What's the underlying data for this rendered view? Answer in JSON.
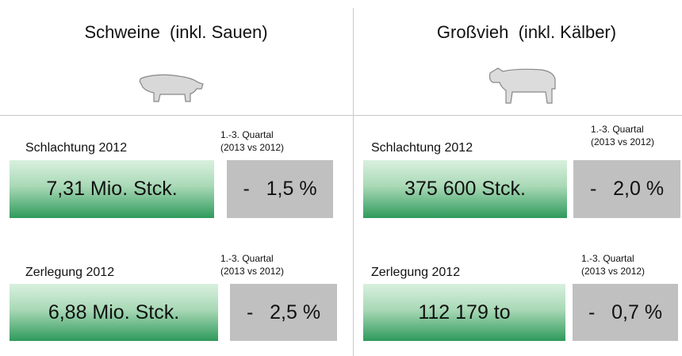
{
  "columns": [
    {
      "title": "Schweine  (inkl. Sauen)",
      "sections": [
        {
          "label": "Schlachtung 2012",
          "note": [
            "1.-3. Quartal",
            "(2013 vs 2012)"
          ],
          "value": "7,31 Mio. Stck.",
          "change": "-   1,5 %"
        },
        {
          "label": "Zerlegung 2012",
          "note": [
            "1.-3. Quartal",
            "(2013 vs 2012)"
          ],
          "value": "6,88 Mio. Stck.",
          "change": "-   2,5 %"
        }
      ]
    },
    {
      "title": "Großvieh  (inkl. Kälber)",
      "sections": [
        {
          "label": "Schlachtung 2012",
          "note": [
            "1.-3. Quartal",
            "(2013 vs 2012)"
          ],
          "value": "375 600 Stck.",
          "change": "-   2,0 %"
        },
        {
          "label": "Zerlegung 2012",
          "note": [
            "1.-3. Quartal",
            "(2013 vs 2012)"
          ],
          "value": "112 179 to",
          "change": "-   0,7 %"
        }
      ]
    }
  ]
}
